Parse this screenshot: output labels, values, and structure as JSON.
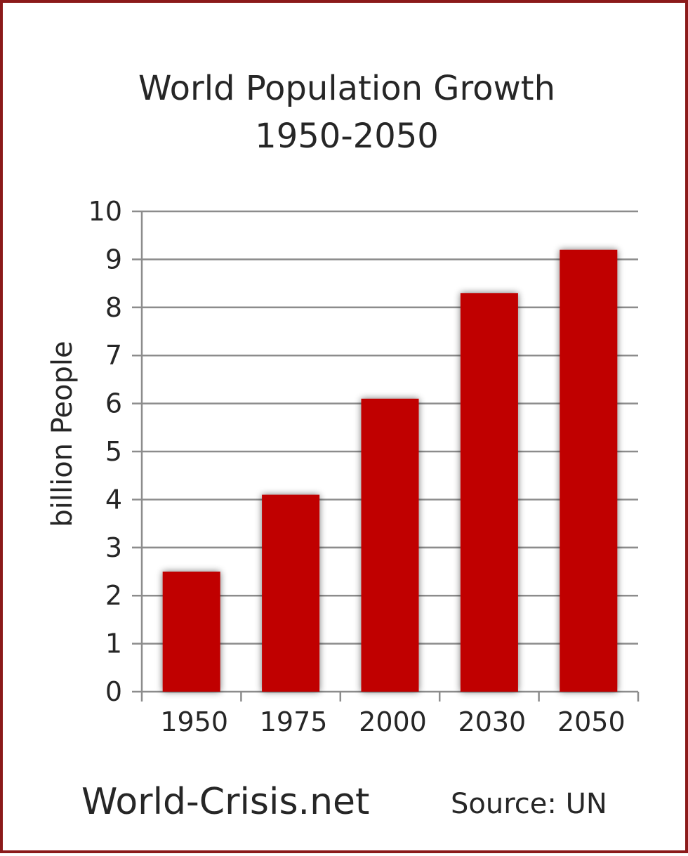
{
  "chart_data": {
    "type": "bar",
    "title": "World Population Growth",
    "subtitle": "1950-2050",
    "xlabel": "",
    "ylabel": "billion People",
    "categories": [
      "1950",
      "1975",
      "2000",
      "2030",
      "2050"
    ],
    "values": [
      2.5,
      4.1,
      6.1,
      8.3,
      9.2
    ],
    "ylim": [
      0,
      10
    ],
    "yticks": [
      0,
      1,
      2,
      3,
      4,
      5,
      6,
      7,
      8,
      9,
      10
    ],
    "grid": true,
    "bar_color": "#c00000",
    "grid_color": "#8c8c8c"
  },
  "footer": {
    "brand": "World-Crisis.net",
    "source": "Source: UN"
  },
  "frame_color": "#8b1a1a"
}
